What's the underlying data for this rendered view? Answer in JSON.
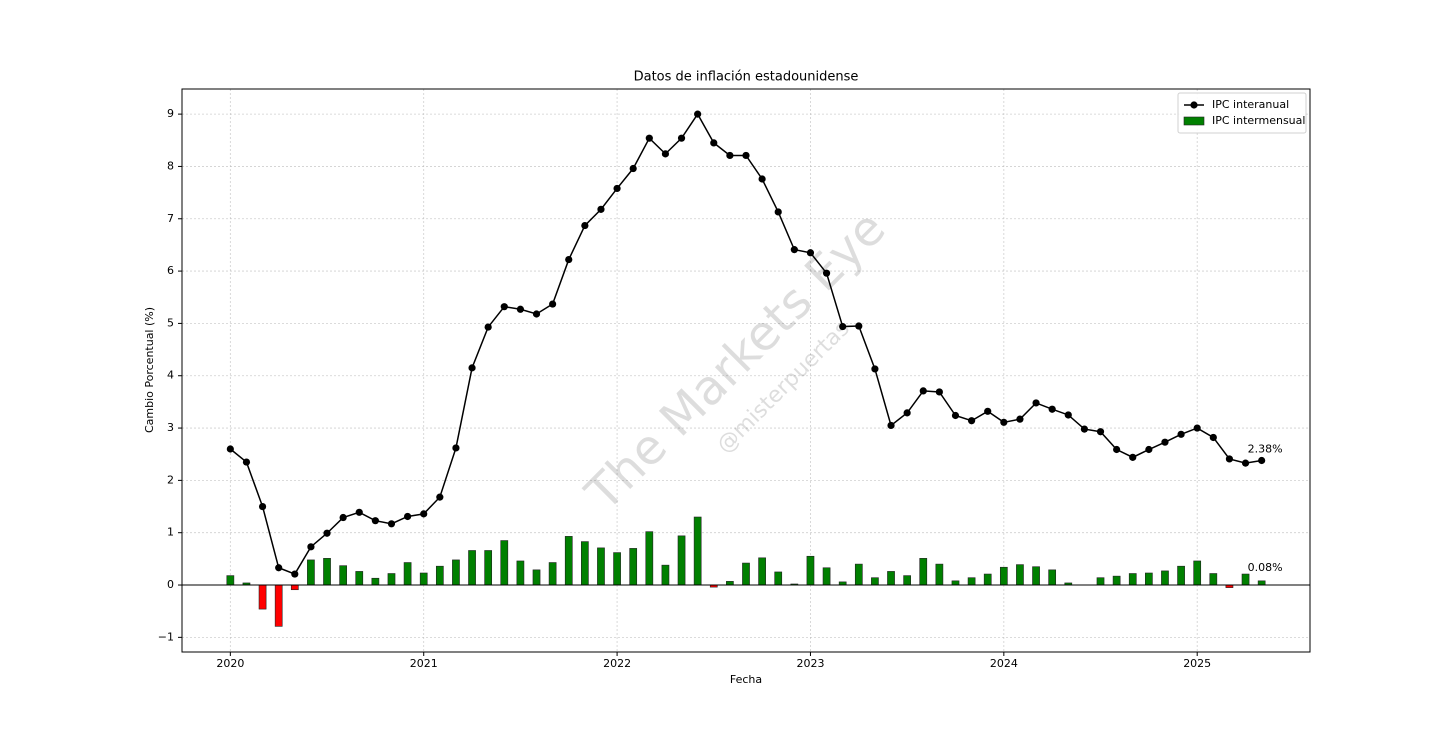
{
  "chart_data": {
    "type": "line_bar",
    "title": "Datos de inflación estadounidense",
    "xlabel": "Fecha",
    "ylabel": "Cambio Porcentual (%)",
    "watermark": "The Markets Eye",
    "watermark_sub": "@misterpuertas",
    "x": [
      "2020-01",
      "2020-02",
      "2020-03",
      "2020-04",
      "2020-05",
      "2020-06",
      "2020-07",
      "2020-08",
      "2020-09",
      "2020-10",
      "2020-11",
      "2020-12",
      "2021-01",
      "2021-02",
      "2021-03",
      "2021-04",
      "2021-05",
      "2021-06",
      "2021-07",
      "2021-08",
      "2021-09",
      "2021-10",
      "2021-11",
      "2021-12",
      "2022-01",
      "2022-02",
      "2022-03",
      "2022-04",
      "2022-05",
      "2022-06",
      "2022-07",
      "2022-08",
      "2022-09",
      "2022-10",
      "2022-11",
      "2022-12",
      "2023-01",
      "2023-02",
      "2023-03",
      "2023-04",
      "2023-05",
      "2023-06",
      "2023-07",
      "2023-08",
      "2023-09",
      "2023-10",
      "2023-11",
      "2023-12",
      "2024-01",
      "2024-02",
      "2024-03",
      "2024-04",
      "2024-05",
      "2024-06",
      "2024-07",
      "2024-08",
      "2024-09",
      "2024-10",
      "2024-11",
      "2024-12",
      "2025-01",
      "2025-02",
      "2025-03",
      "2025-04",
      "2025-05"
    ],
    "series": [
      {
        "name": "IPC interanual",
        "kind": "line",
        "color": "#000000",
        "values": [
          2.6,
          2.35,
          1.5,
          0.33,
          0.21,
          0.73,
          0.99,
          1.29,
          1.39,
          1.23,
          1.17,
          1.31,
          1.36,
          1.68,
          2.62,
          4.15,
          4.93,
          5.32,
          5.27,
          5.18,
          5.37,
          6.22,
          6.87,
          7.18,
          7.58,
          7.96,
          8.54,
          8.24,
          8.54,
          9.0,
          8.45,
          8.21,
          8.21,
          7.76,
          7.13,
          6.41,
          6.35,
          5.96,
          4.94,
          4.95,
          4.13,
          3.05,
          3.29,
          3.71,
          3.69,
          3.24,
          3.14,
          3.32,
          3.11,
          3.17,
          3.48,
          3.36,
          3.25,
          2.98,
          2.93,
          2.59,
          2.44,
          2.59,
          2.73,
          2.88,
          3.0,
          2.82,
          2.41,
          2.33,
          2.38
        ],
        "value_labels": [
          null,
          null,
          null,
          null,
          null,
          null,
          null,
          null,
          null,
          null,
          null,
          null,
          null,
          null,
          null,
          null,
          null,
          null,
          null,
          null,
          null,
          null,
          null,
          null,
          null,
          null,
          null,
          null,
          null,
          null,
          null,
          null,
          null,
          null,
          null,
          null,
          null,
          null,
          null,
          null,
          null,
          null,
          null,
          null,
          null,
          null,
          null,
          null,
          null,
          null,
          null,
          null,
          null,
          null,
          null,
          null,
          null,
          null,
          null,
          null,
          null,
          null,
          null,
          null,
          "2.38%"
        ]
      },
      {
        "name": "IPC intermensual",
        "kind": "bar",
        "color": "#008000",
        "negative_color": "#ff0000",
        "values": [
          0.18,
          0.04,
          -0.46,
          -0.79,
          -0.09,
          0.48,
          0.51,
          0.37,
          0.26,
          0.13,
          0.22,
          0.43,
          0.23,
          0.36,
          0.48,
          0.66,
          0.66,
          0.85,
          0.46,
          0.29,
          0.43,
          0.93,
          0.83,
          0.71,
          0.62,
          0.7,
          1.02,
          0.38,
          0.94,
          1.3,
          -0.04,
          0.07,
          0.42,
          0.52,
          0.25,
          0.02,
          0.55,
          0.33,
          0.06,
          0.4,
          0.14,
          0.26,
          0.18,
          0.51,
          0.4,
          0.08,
          0.14,
          0.21,
          0.34,
          0.39,
          0.35,
          0.29,
          0.04,
          0.0,
          0.14,
          0.17,
          0.22,
          0.23,
          0.27,
          0.36,
          0.46,
          0.22,
          -0.05,
          0.21,
          0.08
        ],
        "value_labels": [
          null,
          null,
          null,
          null,
          null,
          null,
          null,
          null,
          null,
          null,
          null,
          null,
          null,
          null,
          null,
          null,
          null,
          null,
          null,
          null,
          null,
          null,
          null,
          null,
          null,
          null,
          null,
          null,
          null,
          null,
          null,
          null,
          null,
          null,
          null,
          null,
          null,
          null,
          null,
          null,
          null,
          null,
          null,
          null,
          null,
          null,
          null,
          null,
          null,
          null,
          null,
          null,
          null,
          null,
          null,
          null,
          null,
          null,
          null,
          null,
          null,
          null,
          null,
          null,
          "0.08%"
        ]
      }
    ],
    "xlim": [
      "2019-10",
      "2025-08"
    ],
    "xticks": [
      {
        "value": "2020-01",
        "label": "2020"
      },
      {
        "value": "2021-01",
        "label": "2021"
      },
      {
        "value": "2022-01",
        "label": "2022"
      },
      {
        "value": "2023-01",
        "label": "2023"
      },
      {
        "value": "2024-01",
        "label": "2024"
      },
      {
        "value": "2025-01",
        "label": "2025"
      }
    ],
    "ylim": [
      -1.28,
      9.48
    ],
    "yticks": [
      {
        "value": -1,
        "label": "−1"
      },
      0,
      1,
      2,
      3,
      4,
      5,
      6,
      7,
      8,
      9
    ],
    "grid": true,
    "legend": "upper right"
  }
}
